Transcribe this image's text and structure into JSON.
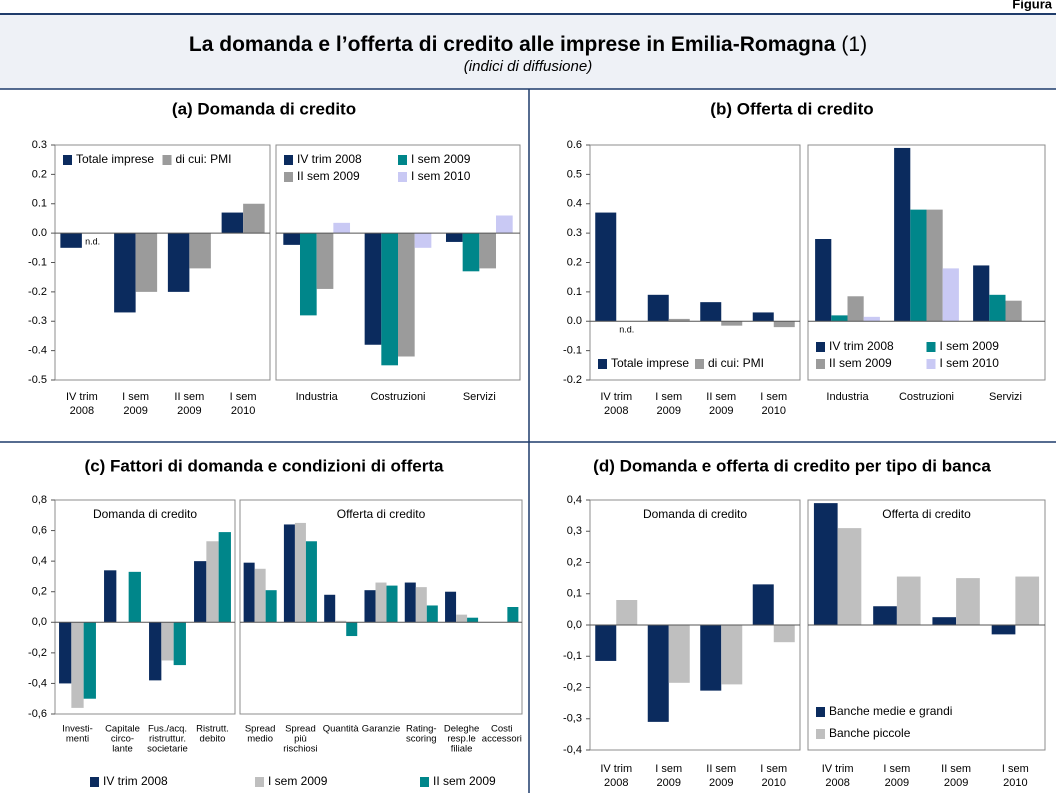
{
  "header": {
    "figure": "Figura",
    "title": "La domanda e l’offerta di credito alle imprese in Emilia-Romagna",
    "note": "(1)",
    "subtitle": "(indici di diffusione)"
  },
  "panels": [
    {
      "title": "(a) Domanda di credito"
    },
    {
      "title": "(b) Offerta di credito"
    },
    {
      "title": "(c) Fattori di domanda e condizioni di offerta"
    },
    {
      "title": "(d) Domanda e offerta di credito per tipo di banca"
    }
  ],
  "chart_data": [
    {
      "type": "bar",
      "categories": [
        [
          "IV trim",
          "2008"
        ],
        [
          "I sem",
          "2009"
        ],
        [
          "II sem",
          "2009"
        ],
        [
          "I sem",
          "2010"
        ]
      ],
      "series": [
        {
          "name": "Totale imprese",
          "color": "#0b2b5e",
          "values": [
            -0.05,
            -0.27,
            -0.2,
            0.07
          ]
        },
        {
          "name": "di cui: PMI",
          "color": "#9b9b9b",
          "values": [
            null,
            -0.2,
            -0.12,
            0.1
          ]
        }
      ],
      "annotation": "n.d.",
      "ylim": [
        -0.5,
        0.3
      ],
      "yticks": [
        -0.5,
        -0.4,
        -0.3,
        -0.2,
        -0.1,
        {
          "value": 0,
          "label": "0.0"
        },
        0.1,
        0.2,
        0.3
      ],
      "legend": {
        "loc": "upper left",
        "ncol": 2
      }
    },
    {
      "type": "bar",
      "categories": [
        [
          "Industria"
        ],
        [
          "Costruzioni"
        ],
        [
          "Servizi"
        ]
      ],
      "series": [
        {
          "name": "IV trim 2008",
          "color": "#0b2b5e",
          "values": [
            -0.04,
            -0.38,
            -0.03
          ]
        },
        {
          "name": "I sem 2009",
          "color": "#00868a",
          "values": [
            -0.28,
            -0.45,
            -0.13
          ]
        },
        {
          "name": "II sem 2009",
          "color": "#9b9b9b",
          "values": [
            -0.19,
            -0.42,
            -0.12
          ]
        },
        {
          "name": "I sem 2010",
          "color": "#c9c9f4",
          "values": [
            0.035,
            -0.05,
            0.06
          ]
        }
      ],
      "ylim": [
        -0.5,
        0.3
      ],
      "legend": {
        "loc": "upper left",
        "ncol": 2
      }
    },
    {
      "type": "bar",
      "categories": [
        [
          "IV trim",
          "2008"
        ],
        [
          "I sem",
          "2009"
        ],
        [
          "II sem",
          "2009"
        ],
        [
          "I sem",
          "2010"
        ]
      ],
      "series": [
        {
          "name": "Totale imprese",
          "color": "#0b2b5e",
          "values": [
            0.37,
            0.09,
            0.065,
            0.03
          ]
        },
        {
          "name": "di cui: PMI",
          "color": "#9b9b9b",
          "values": [
            null,
            0.008,
            -0.015,
            -0.02
          ]
        }
      ],
      "annotation": "n.d.",
      "ylim": [
        -0.2,
        0.6
      ],
      "yticks": [
        -0.2,
        -0.1,
        {
          "value": 0,
          "label": "0.0"
        },
        0.1,
        0.2,
        0.3,
        0.4,
        0.5,
        0.6
      ],
      "legend": {
        "loc": "lower left",
        "ncol": 2
      }
    },
    {
      "type": "bar",
      "categories": [
        [
          "Industria"
        ],
        [
          "Costruzioni"
        ],
        [
          "Servizi"
        ]
      ],
      "series": [
        {
          "name": "IV trim 2008",
          "color": "#0b2b5e",
          "values": [
            0.28,
            0.59,
            0.19
          ]
        },
        {
          "name": "I sem 2009",
          "color": "#00868a",
          "values": [
            0.02,
            0.38,
            0.09
          ]
        },
        {
          "name": "II sem 2009",
          "color": "#9b9b9b",
          "values": [
            0.085,
            0.38,
            0.07
          ]
        },
        {
          "name": "I sem 2010",
          "color": "#c9c9f4",
          "values": [
            0.015,
            0.18,
            null
          ]
        }
      ],
      "ylim": [
        -0.2,
        0.6
      ],
      "legend": {
        "loc": "lower left",
        "ncol": 2
      }
    },
    {
      "type": "bar",
      "subtitle": "Domanda di credito",
      "categories": [
        [
          "Investi-",
          "menti"
        ],
        [
          "Capitale",
          "circo-",
          "lante"
        ],
        [
          "Fus./acq.",
          "ristruttur.",
          "societarie"
        ],
        [
          "Ristrutt.",
          "debito"
        ]
      ],
      "series": [
        {
          "name": "IV trim 2008",
          "color": "#0b2b5e",
          "values": [
            -0.4,
            0.34,
            -0.38,
            0.4
          ]
        },
        {
          "name": "I sem 2009",
          "color": "#bfbfbf",
          "values": [
            -0.56,
            null,
            -0.25,
            0.53
          ]
        },
        {
          "name": "II sem 2009",
          "color": "#00868a",
          "values": [
            -0.5,
            0.33,
            -0.28,
            0.59
          ]
        }
      ],
      "ylim": [
        -0.6,
        0.8
      ],
      "yticks": [
        {
          "value": -0.6,
          "label": "-0,6"
        },
        {
          "value": -0.4,
          "label": "-0,4"
        },
        {
          "value": -0.2,
          "label": "-0,2"
        },
        {
          "value": 0,
          "label": "0,0"
        },
        {
          "value": 0.2,
          "label": "0,2"
        },
        {
          "value": 0.4,
          "label": "0,4"
        },
        {
          "value": 0.6,
          "label": "0,6"
        },
        {
          "value": 0.8,
          "label": "0,8"
        }
      ],
      "legend": {
        "loc": "below",
        "ncol": 3
      }
    },
    {
      "type": "bar",
      "subtitle": "Offerta di credito",
      "categories": [
        [
          "Spread",
          "medio"
        ],
        [
          "Spread",
          "più",
          "rischiosi"
        ],
        [
          "Quantità"
        ],
        [
          "Garanzie"
        ],
        [
          "Rating-",
          "scoring"
        ],
        [
          "Deleghe",
          "resp.le",
          "filiale"
        ],
        [
          "Costi",
          "accessori"
        ]
      ],
      "series": [
        {
          "color": "#0b2b5e",
          "values": [
            0.39,
            0.64,
            0.18,
            0.21,
            0.26,
            0.2,
            null
          ]
        },
        {
          "color": "#bfbfbf",
          "values": [
            0.35,
            0.65,
            0.01,
            0.26,
            0.23,
            0.05,
            null
          ]
        },
        {
          "color": "#00868a",
          "values": [
            0.21,
            0.53,
            -0.09,
            0.24,
            0.11,
            0.03,
            0.1
          ]
        }
      ],
      "ylim": [
        -0.6,
        0.8
      ]
    },
    {
      "type": "bar",
      "subtitle": "Domanda di credito",
      "categories": [
        [
          "IV trim",
          "2008"
        ],
        [
          "I sem",
          "2009"
        ],
        [
          "II sem",
          "2009"
        ],
        [
          "I sem",
          "2010"
        ]
      ],
      "series": [
        {
          "color": "#0b2b5e",
          "values": [
            -0.115,
            -0.31,
            -0.21,
            0.13
          ]
        },
        {
          "color": "#bfbfbf",
          "values": [
            0.08,
            -0.185,
            -0.19,
            -0.055
          ]
        }
      ],
      "ylim": [
        -0.4,
        0.4
      ],
      "yticks": [
        {
          "value": -0.4,
          "label": "-0,4"
        },
        {
          "value": -0.3,
          "label": "-0,3"
        },
        {
          "value": -0.2,
          "label": "-0,2"
        },
        {
          "value": -0.1,
          "label": "-0,1"
        },
        {
          "value": 0,
          "label": "0,0"
        },
        {
          "value": 0.1,
          "label": "0,1"
        },
        {
          "value": 0.2,
          "label": "0,2"
        },
        {
          "value": 0.3,
          "label": "0,3"
        },
        {
          "value": 0.4,
          "label": "0,4"
        }
      ]
    },
    {
      "type": "bar",
      "subtitle": "Offerta di credito",
      "categories": [
        [
          "IV trim",
          "2008"
        ],
        [
          "I sem",
          "2009"
        ],
        [
          "II sem",
          "2009"
        ],
        [
          "I sem",
          "2010"
        ]
      ],
      "series": [
        {
          "name": "Banche medie e grandi",
          "color": "#0b2b5e",
          "values": [
            0.39,
            0.06,
            0.025,
            -0.03
          ]
        },
        {
          "name": "Banche piccole",
          "color": "#bfbfbf",
          "values": [
            0.31,
            0.155,
            0.15,
            0.155
          ]
        }
      ],
      "ylim": [
        -0.4,
        0.4
      ],
      "legend": {
        "loc": "lower left",
        "ncol": 1
      }
    }
  ]
}
